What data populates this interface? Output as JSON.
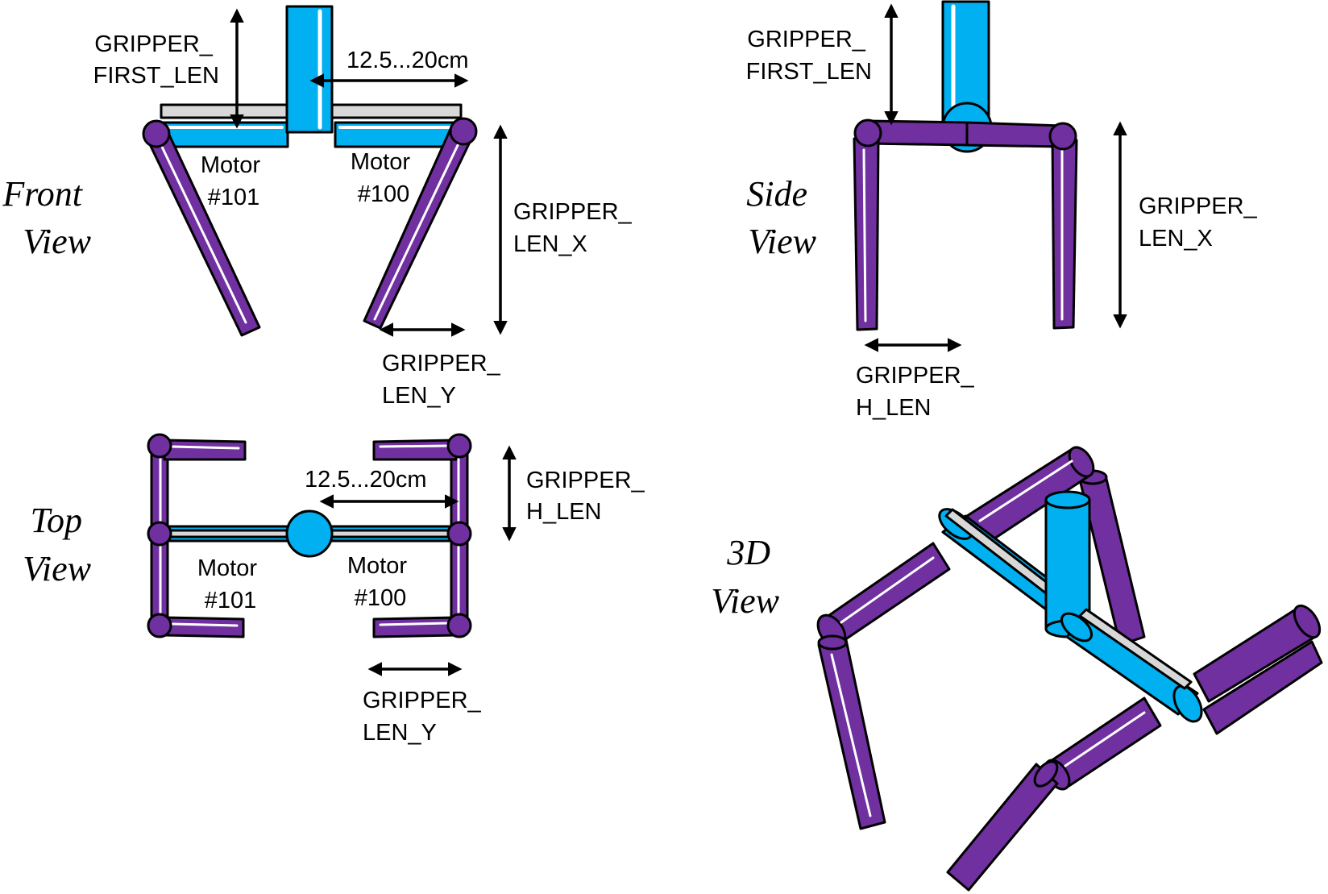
{
  "colors": {
    "link": "#7030a0",
    "motor": "#00b0f0",
    "rail": "#d8d8d8",
    "outline": "#000000"
  },
  "views": {
    "front": {
      "title_line1": "Front",
      "title_line2": "View"
    },
    "side": {
      "title_line1": "Side",
      "title_line2": "View"
    },
    "top": {
      "title_line1": "Top",
      "title_line2": "View"
    },
    "three_d": {
      "title_line1": "3D",
      "title_line2": "View"
    }
  },
  "labels": {
    "gripper_first_len": [
      "GRIPPER_",
      "FIRST_LEN"
    ],
    "gripper_len_x": [
      "GRIPPER_",
      "LEN_X"
    ],
    "gripper_len_y": [
      "GRIPPER_",
      "LEN_Y"
    ],
    "gripper_h_len": [
      "GRIPPER_",
      "H_LEN"
    ],
    "span": "12.5...20cm",
    "motor_101": [
      "Motor",
      "#101"
    ],
    "motor_100": [
      "Motor",
      "#100"
    ]
  }
}
